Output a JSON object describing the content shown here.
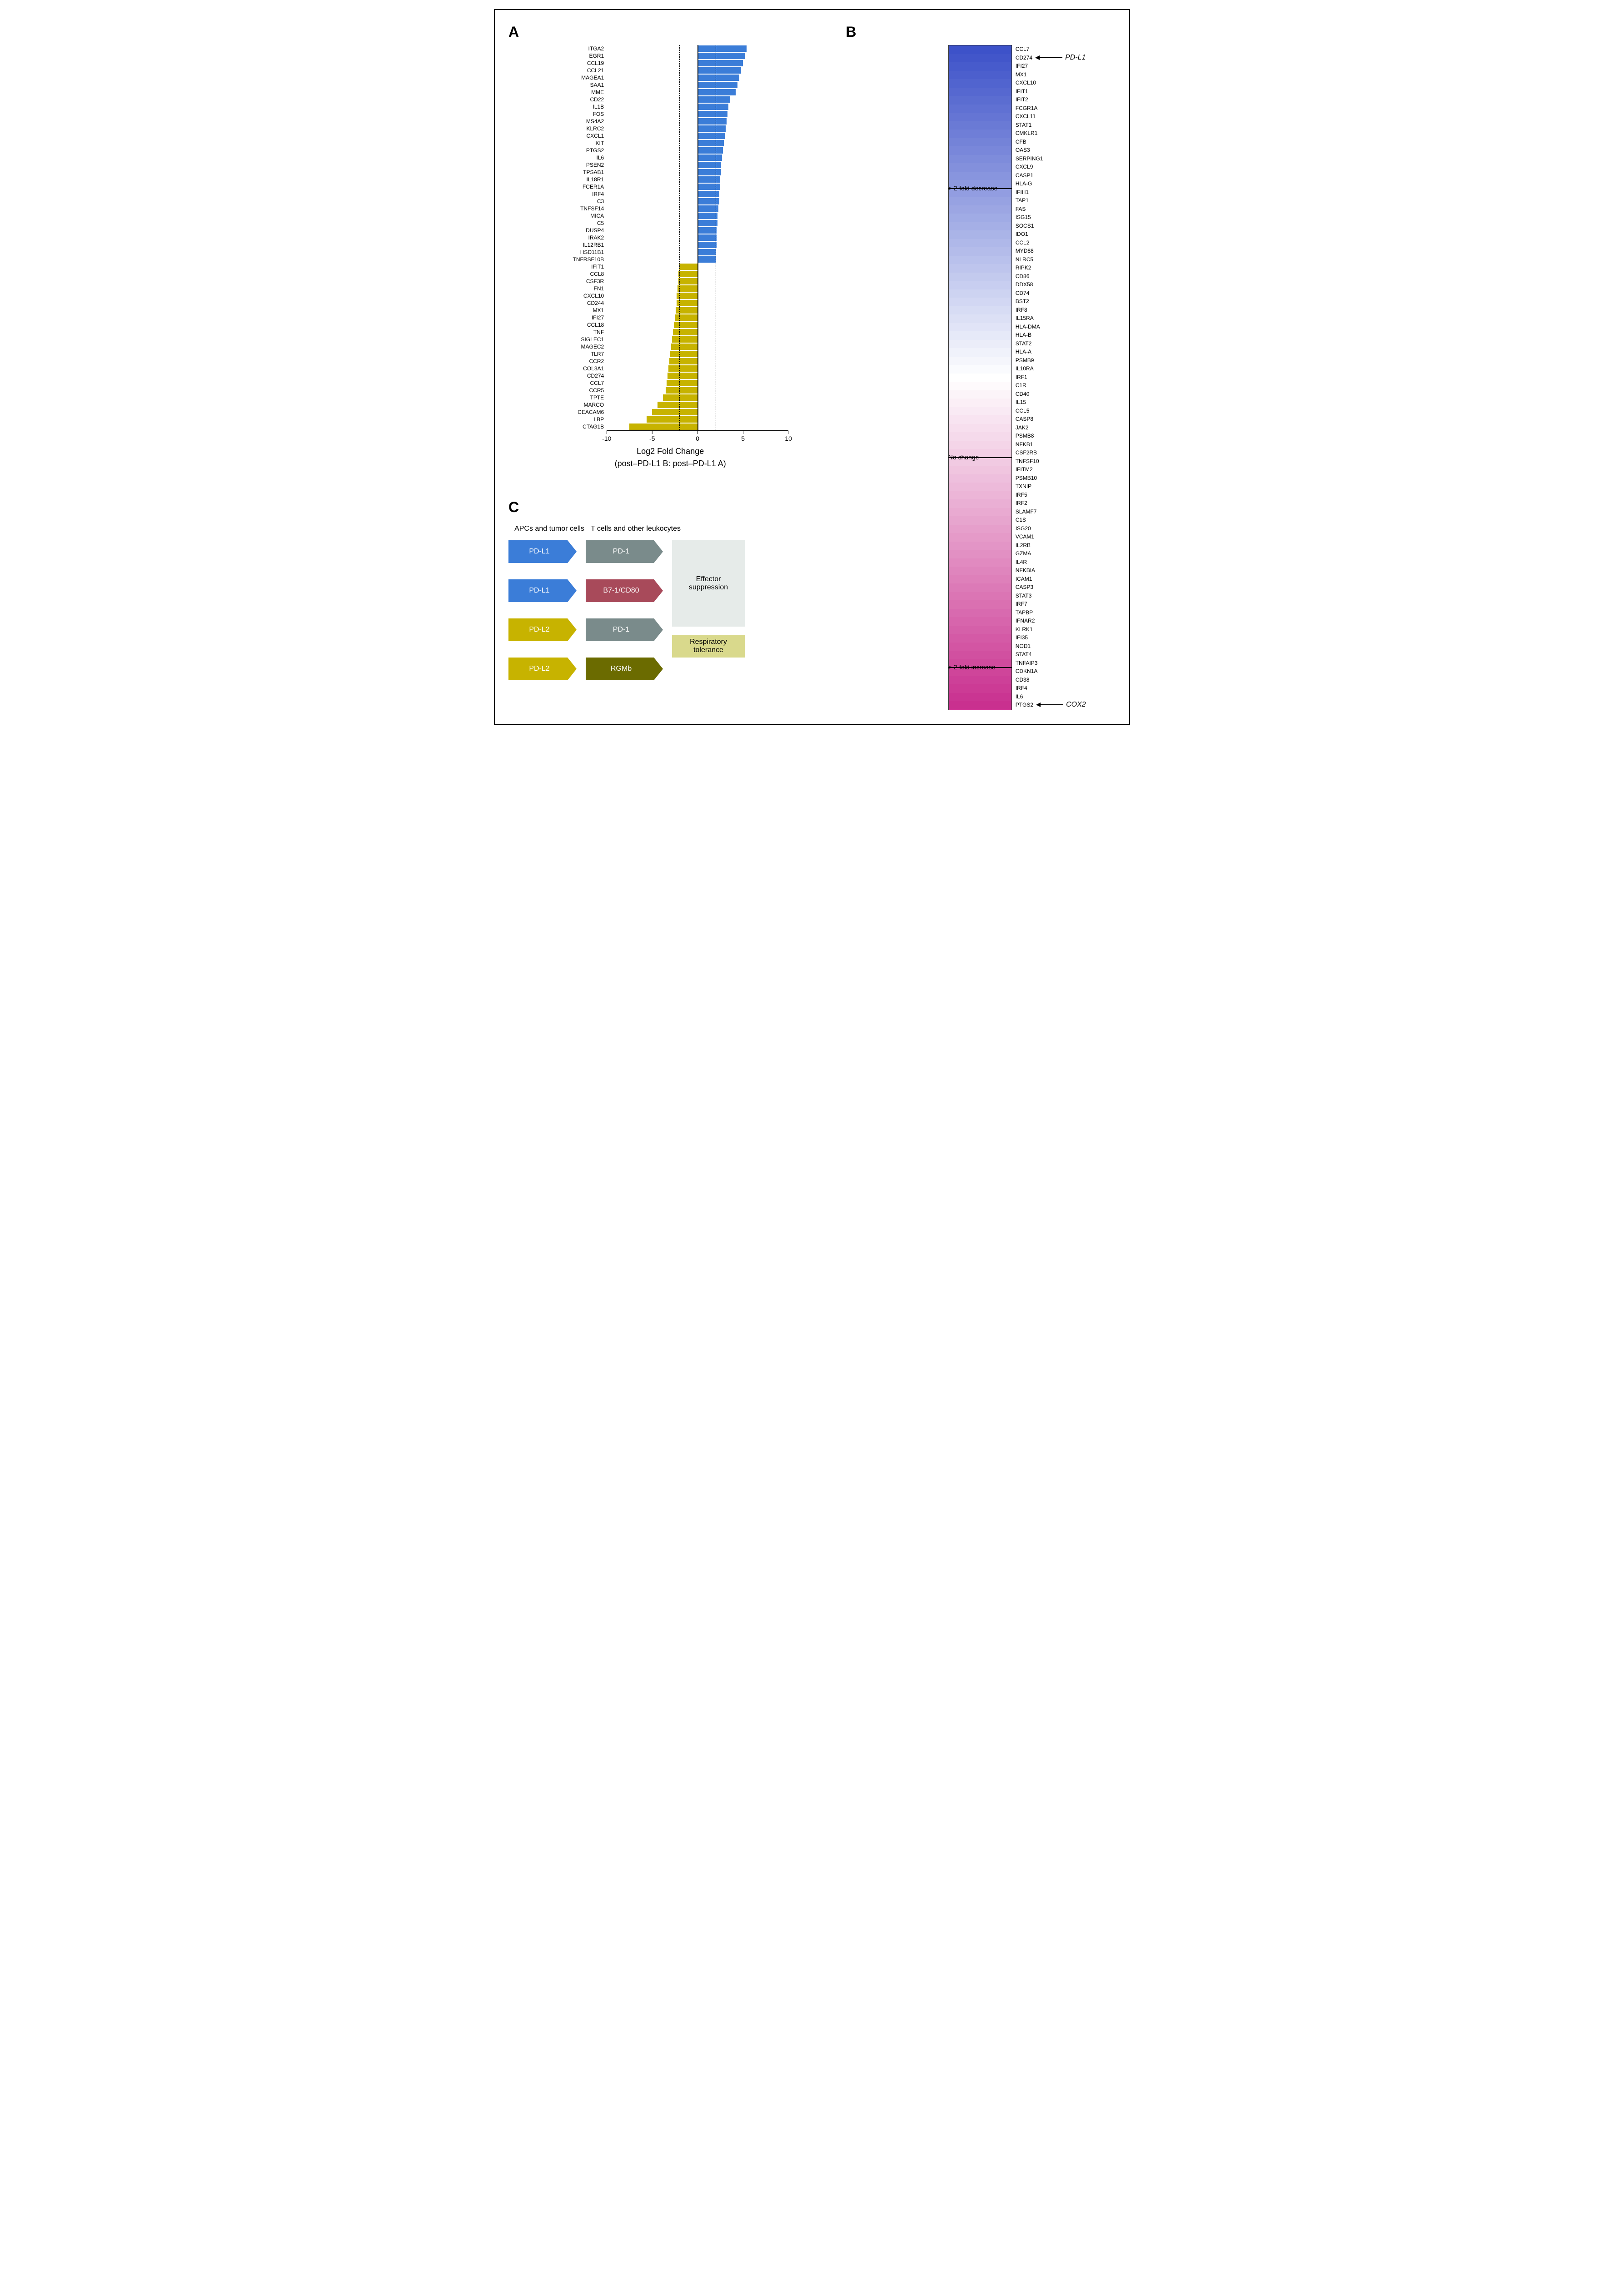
{
  "panelA": {
    "type": "bar",
    "label": "A",
    "xlabel_line1": "Log2 Fold Change",
    "xlabel_line2": "(post–PD-L1 B: post–PD-L1 A)",
    "xlim": [
      -10,
      10
    ],
    "xticks": [
      -10,
      -5,
      0,
      5,
      10
    ],
    "ref_lines": [
      -2,
      0,
      2
    ],
    "bar_colors": {
      "pos": "#3b7dd8",
      "neg": "#c7b300"
    },
    "label_fontsize": 12,
    "bars": [
      {
        "gene": "ITGA2",
        "value": 5.4
      },
      {
        "gene": "EGR1",
        "value": 5.2
      },
      {
        "gene": "CCL19",
        "value": 5.0
      },
      {
        "gene": "CCL21",
        "value": 4.8
      },
      {
        "gene": "MAGEA1",
        "value": 4.6
      },
      {
        "gene": "SAA1",
        "value": 4.4
      },
      {
        "gene": "MME",
        "value": 4.2
      },
      {
        "gene": "CD22",
        "value": 3.6
      },
      {
        "gene": "IL1B",
        "value": 3.4
      },
      {
        "gene": "FOS",
        "value": 3.3
      },
      {
        "gene": "MS4A2",
        "value": 3.2
      },
      {
        "gene": "KLRC2",
        "value": 3.1
      },
      {
        "gene": "CXCL1",
        "value": 3.0
      },
      {
        "gene": "KIT",
        "value": 2.9
      },
      {
        "gene": "PTGS2",
        "value": 2.8
      },
      {
        "gene": "IL6",
        "value": 2.7
      },
      {
        "gene": "PSEN2",
        "value": 2.6
      },
      {
        "gene": "TPSAB1",
        "value": 2.6
      },
      {
        "gene": "IL18R1",
        "value": 2.5
      },
      {
        "gene": "FCER1A",
        "value": 2.5
      },
      {
        "gene": "IRF4",
        "value": 2.4
      },
      {
        "gene": "C3",
        "value": 2.4
      },
      {
        "gene": "TNFSF14",
        "value": 2.3
      },
      {
        "gene": "MICA",
        "value": 2.2
      },
      {
        "gene": "C5",
        "value": 2.2
      },
      {
        "gene": "DUSP4",
        "value": 2.1
      },
      {
        "gene": "IRAK2",
        "value": 2.1
      },
      {
        "gene": "IL12RB1",
        "value": 2.1
      },
      {
        "gene": "HSD11B1",
        "value": 2.0
      },
      {
        "gene": "TNFRSF10B",
        "value": 2.0
      },
      {
        "gene": "IFIT1",
        "value": -2.0
      },
      {
        "gene": "CCL8",
        "value": -2.1
      },
      {
        "gene": "CSF3R",
        "value": -2.1
      },
      {
        "gene": "FN1",
        "value": -2.2
      },
      {
        "gene": "CXCL10",
        "value": -2.3
      },
      {
        "gene": "CD244",
        "value": -2.3
      },
      {
        "gene": "MX1",
        "value": -2.4
      },
      {
        "gene": "IFI27",
        "value": -2.5
      },
      {
        "gene": "CCL18",
        "value": -2.6
      },
      {
        "gene": "TNF",
        "value": -2.7
      },
      {
        "gene": "SIGLEC1",
        "value": -2.8
      },
      {
        "gene": "MAGEC2",
        "value": -2.9
      },
      {
        "gene": "TLR7",
        "value": -3.0
      },
      {
        "gene": "CCR2",
        "value": -3.1
      },
      {
        "gene": "COL3A1",
        "value": -3.2
      },
      {
        "gene": "CD274",
        "value": -3.3
      },
      {
        "gene": "CCL7",
        "value": -3.4
      },
      {
        "gene": "CCR5",
        "value": -3.5
      },
      {
        "gene": "TPTE",
        "value": -3.8
      },
      {
        "gene": "MARCO",
        "value": -4.4
      },
      {
        "gene": "CEACAM6",
        "value": -5.0
      },
      {
        "gene": "LBP",
        "value": -5.6
      },
      {
        "gene": "CTAG1B",
        "value": -7.5
      }
    ]
  },
  "panelB": {
    "type": "heatmap",
    "label": "B",
    "color_top": "#3d52c9",
    "color_mid": "#ffffff",
    "color_bottom": "#c9308f",
    "markers": [
      {
        "label": "> 2-fold decrease",
        "after_gene": "HLA-G"
      },
      {
        "label": "No change",
        "after_gene": "CSF2RB"
      },
      {
        "label": "> 2-fold increase",
        "after_gene": "TNFAIP3"
      }
    ],
    "arrows": [
      {
        "gene": "CD274",
        "text": "PD-L1"
      },
      {
        "gene": "PTGS2",
        "text": "COX2"
      }
    ],
    "genes": [
      "CCL7",
      "CD274",
      "IFI27",
      "MX1",
      "CXCL10",
      "IFIT1",
      "IFIT2",
      "FCGR1A",
      "CXCL11",
      "STAT1",
      "CMKLR1",
      "CFB",
      "OAS3",
      "SERPING1",
      "CXCL9",
      "CASP1",
      "HLA-G",
      "IFIH1",
      "TAP1",
      "FAS",
      "ISG15",
      "SOCS1",
      "IDO1",
      "CCL2",
      "MYD88",
      "NLRC5",
      "RIPK2",
      "CD86",
      "DDX58",
      "CD74",
      "BST2",
      "IRF8",
      "IL15RA",
      "HLA-DMA",
      "HLA-B",
      "STAT2",
      "HLA-A",
      "PSMB9",
      "IL10RA",
      "IRF1",
      "C1R",
      "CD40",
      "IL15",
      "CCL5",
      "CASP8",
      "JAK2",
      "PSMB8",
      "NFKB1",
      "CSF2RB",
      "TNFSF10",
      "IFITM2",
      "PSMB10",
      "TXNIP",
      "IRF5",
      "IRF2",
      "SLAMF7",
      "C1S",
      "ISG20",
      "VCAM1",
      "IL2RB",
      "GZMA",
      "IL4R",
      "NFKBIA",
      "ICAM1",
      "CASP3",
      "STAT3",
      "IRF7",
      "TAPBP",
      "IFNAR2",
      "KLRK1",
      "IFI35",
      "NOD1",
      "STAT4",
      "TNFAIP3",
      "CDKN1A",
      "CD38",
      "IRF4",
      "IL6",
      "PTGS2"
    ]
  },
  "panelC": {
    "type": "flowchart",
    "label": "C",
    "headers": {
      "col1": "APCs and tumor cells",
      "col2": "T cells and other leukocytes"
    },
    "colors": {
      "pdl1": "#3b7dd8",
      "pdl2": "#c7b300",
      "pd1": "#7a8b8b",
      "b71": "#a84a5a",
      "rgmb": "#6b6b00",
      "effector_bg": "#e6ebe9",
      "resp_bg": "#d9d98c"
    },
    "rows": [
      {
        "ligand": "PD-L1",
        "ligand_color": "pdl1",
        "receptor": "PD-1",
        "receptor_color": "pd1",
        "outcome": "effector"
      },
      {
        "ligand": "PD-L1",
        "ligand_color": "pdl1",
        "receptor": "B7-1/CD80",
        "receptor_color": "b71",
        "outcome": "effector"
      },
      {
        "ligand": "PD-L2",
        "ligand_color": "pdl2",
        "receptor": "PD-1",
        "receptor_color": "pd1",
        "outcome": "effector"
      },
      {
        "ligand": "PD-L2",
        "ligand_color": "pdl2",
        "receptor": "RGMb",
        "receptor_color": "rgmb",
        "outcome": "resp"
      }
    ],
    "outcomes": {
      "effector": "Effector suppression",
      "resp": "Respiratory tolerance"
    }
  }
}
